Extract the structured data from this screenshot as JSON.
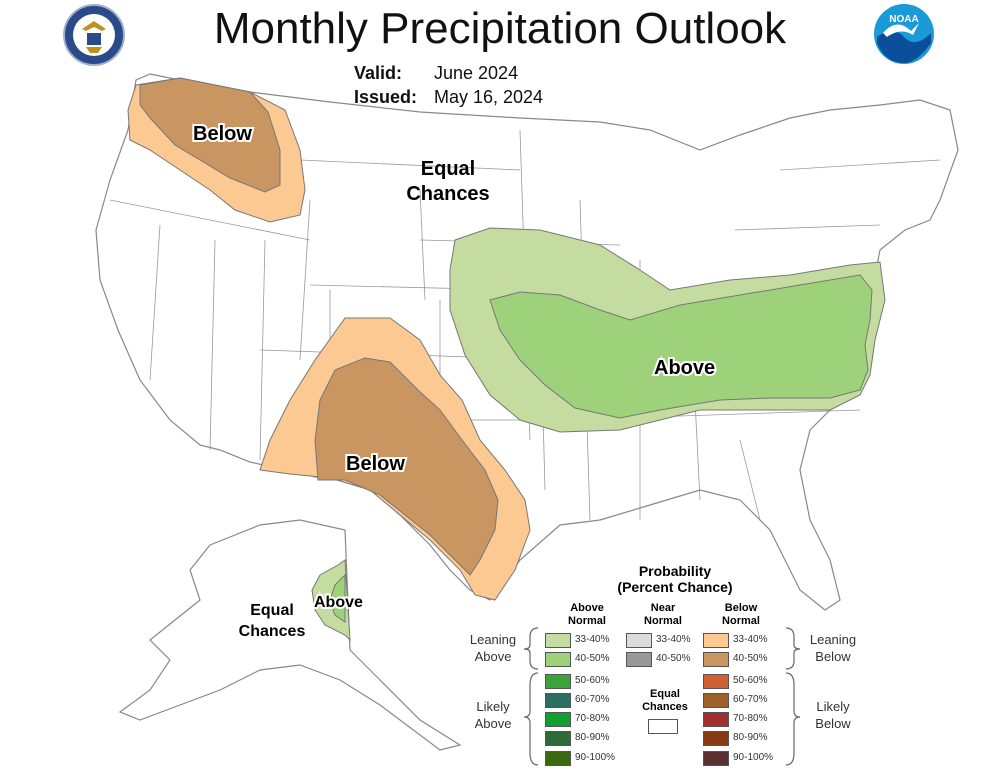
{
  "title": "Monthly Precipitation Outlook",
  "valid_label": "Valid:",
  "valid_value": "June 2024",
  "issued_label": "Issued:",
  "issued_value": "May 16, 2024",
  "logos": {
    "left": "department-of-commerce-seal",
    "right": "noaa-logo"
  },
  "map_labels": {
    "nw_below": "Below",
    "central_equal_1": "Equal",
    "central_equal_2": "Chances",
    "east_above": "Above",
    "sw_below": "Below",
    "ak_equal_1": "Equal",
    "ak_equal_2": "Chances",
    "ak_above": "Above"
  },
  "colors": {
    "above_33_40": "#c4dca0",
    "above_40_50": "#9ed27a",
    "above_50_60": "#3aa33a",
    "above_60_70": "#2a6f60",
    "above_70_80": "#10a030",
    "above_80_90": "#2e6b3a",
    "above_90_100": "#3a6a10",
    "near_33_40": "#dcdcdc",
    "near_40_50": "#999999",
    "below_33_40": "#fcc993",
    "below_40_50": "#c99560",
    "below_50_60": "#d06030",
    "below_60_70": "#a0602a",
    "below_70_80": "#a03030",
    "below_80_90": "#8a3a10",
    "below_90_100": "#5a3030",
    "equal_chances": "#ffffff"
  },
  "legend": {
    "title_1": "Probability",
    "title_2": "(Percent Chance)",
    "above_head_1": "Above",
    "above_head_2": "Normal",
    "near_head_1": "Near",
    "near_head_2": "Normal",
    "below_head_1": "Below",
    "below_head_2": "Normal",
    "leaning_above_1": "Leaning",
    "leaning_above_2": "Above",
    "likely_above_1": "Likely",
    "likely_above_2": "Above",
    "leaning_below_1": "Leaning",
    "leaning_below_2": "Below",
    "likely_below_1": "Likely",
    "likely_below_2": "Below",
    "equal_1": "Equal",
    "equal_2": "Chances",
    "above_ranges": [
      "33-40%",
      "40-50%",
      "50-60%",
      "60-70%",
      "70-80%",
      "80-90%",
      "90-100%"
    ],
    "near_ranges": [
      "33-40%",
      "40-50%"
    ],
    "below_ranges": [
      "33-40%",
      "40-50%",
      "50-60%",
      "60-70%",
      "70-80%",
      "80-90%",
      "90-100%"
    ]
  }
}
